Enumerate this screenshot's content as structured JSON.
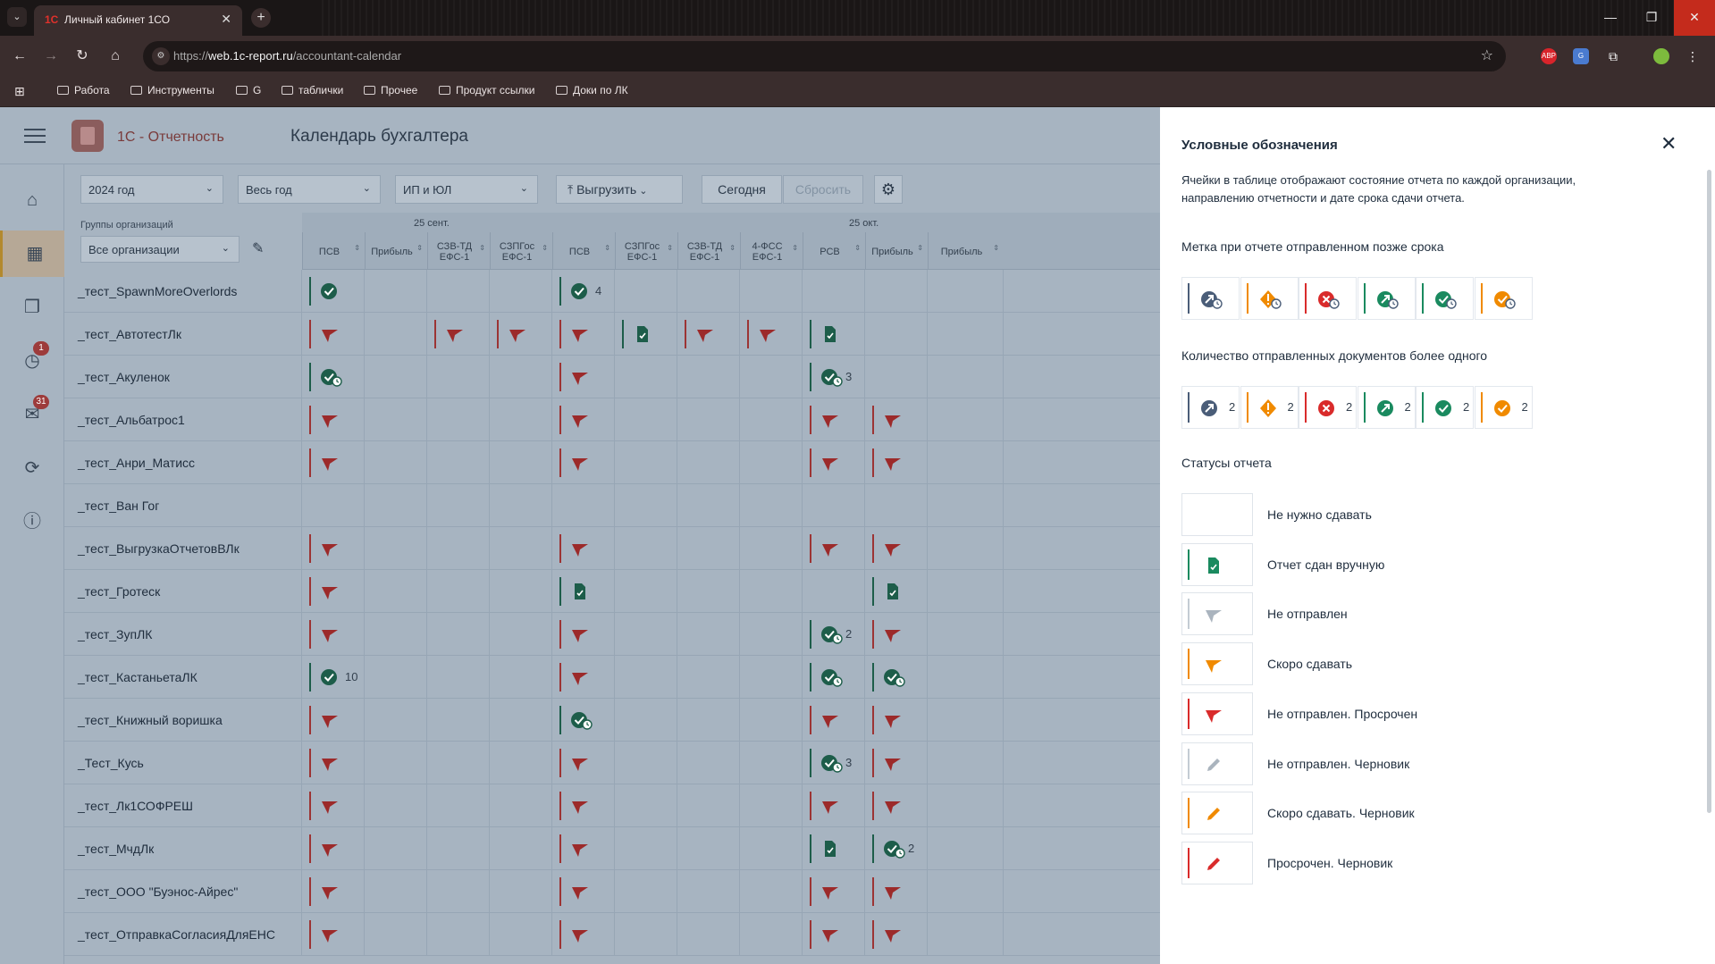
{
  "browser": {
    "tab_title": "Личный кабинет 1СО",
    "url_prefix": "https://",
    "url_host": "web.1c-report.ru",
    "url_path": "/accountant-calendar",
    "bookmarks": [
      "Работа",
      "Инструменты",
      "G",
      "таблички",
      "Прочее",
      "Продукт ссылки",
      "Доки по ЛК"
    ],
    "extensions": [
      "ABP",
      "translate-icon",
      "extensions-icon"
    ]
  },
  "app": {
    "brand": "1С - Отчетность",
    "title": "Календарь бухгалтера",
    "sidebar_badges": {
      "history": "1",
      "mail": "31"
    },
    "filters": {
      "year": "2024 год",
      "period": "Весь год",
      "type": "ИП и ЮЛ",
      "export": "Выгрузить",
      "today": "Сегодня",
      "reset": "Сбросить"
    },
    "group_label": "Группы организаций",
    "group_value": "Все организации",
    "months": [
      "25 сент.",
      "25 окт."
    ],
    "columns": [
      {
        "line1": "ПСВ",
        "line2": ""
      },
      {
        "line1": "Прибыль",
        "line2": ""
      },
      {
        "line1": "СЗВ-ТД",
        "line2": "ЕФС-1"
      },
      {
        "line1": "СЗПГос",
        "line2": "ЕФС-1"
      },
      {
        "line1": "ПСВ",
        "line2": ""
      },
      {
        "line1": "СЗПГос",
        "line2": "ЕФС-1"
      },
      {
        "line1": "СЗВ-ТД",
        "line2": "ЕФС-1"
      },
      {
        "line1": "4-ФСС",
        "line2": "ЕФС-1"
      },
      {
        "line1": "РСВ",
        "line2": ""
      },
      {
        "line1": "Прибыль",
        "line2": ""
      },
      {
        "line1": "Прибыль",
        "line2": ""
      }
    ],
    "rows": [
      {
        "org": "_тест_SpawnMoreOverlords",
        "cells": [
          {
            "c": 0,
            "s": "ok",
            "bar": "green"
          },
          {
            "c": 4,
            "s": "ok",
            "bar": "green",
            "n": "4"
          }
        ]
      },
      {
        "org": "_тест_АвтотестЛк",
        "cells": [
          {
            "c": 0,
            "s": "flag",
            "bar": "red"
          },
          {
            "c": 2,
            "s": "flag",
            "bar": "red"
          },
          {
            "c": 3,
            "s": "flag",
            "bar": "red"
          },
          {
            "c": 4,
            "s": "flag",
            "bar": "red"
          },
          {
            "c": 5,
            "s": "doc",
            "bar": "green"
          },
          {
            "c": 6,
            "s": "flag",
            "bar": "red"
          },
          {
            "c": 7,
            "s": "flag",
            "bar": "red"
          },
          {
            "c": 8,
            "s": "doc",
            "bar": "green"
          }
        ]
      },
      {
        "org": "_тест_Акуленок",
        "cells": [
          {
            "c": 0,
            "s": "okclock",
            "bar": "green"
          },
          {
            "c": 4,
            "s": "flag",
            "bar": "red"
          },
          {
            "c": 8,
            "s": "okclock",
            "bar": "green",
            "n": "3"
          }
        ]
      },
      {
        "org": "_тест_Альбатрос1",
        "cells": [
          {
            "c": 0,
            "s": "flag",
            "bar": "red"
          },
          {
            "c": 4,
            "s": "flag",
            "bar": "red"
          },
          {
            "c": 8,
            "s": "flag",
            "bar": "red"
          },
          {
            "c": 9,
            "s": "flag",
            "bar": "red"
          }
        ]
      },
      {
        "org": "_тест_Анри_Матисс",
        "cells": [
          {
            "c": 0,
            "s": "flag",
            "bar": "red"
          },
          {
            "c": 4,
            "s": "flag",
            "bar": "red"
          },
          {
            "c": 8,
            "s": "flag",
            "bar": "red"
          },
          {
            "c": 9,
            "s": "flag",
            "bar": "red"
          }
        ]
      },
      {
        "org": "_тест_Ван Гог",
        "cells": []
      },
      {
        "org": "_тест_ВыгрузкаОтчетовВЛк",
        "cells": [
          {
            "c": 0,
            "s": "flag",
            "bar": "red"
          },
          {
            "c": 4,
            "s": "flag",
            "bar": "red"
          },
          {
            "c": 8,
            "s": "flag",
            "bar": "red"
          },
          {
            "c": 9,
            "s": "flag",
            "bar": "red"
          }
        ]
      },
      {
        "org": "_тест_Гротеск",
        "cells": [
          {
            "c": 0,
            "s": "flag",
            "bar": "red"
          },
          {
            "c": 4,
            "s": "doc",
            "bar": "green"
          },
          {
            "c": 9,
            "s": "doc",
            "bar": "green"
          }
        ]
      },
      {
        "org": "_тест_ЗупЛК",
        "cells": [
          {
            "c": 0,
            "s": "flag",
            "bar": "red"
          },
          {
            "c": 4,
            "s": "flag",
            "bar": "red"
          },
          {
            "c": 8,
            "s": "okclock",
            "bar": "green",
            "n": "2"
          },
          {
            "c": 9,
            "s": "flag",
            "bar": "red"
          }
        ]
      },
      {
        "org": "_тест_КастаньетаЛК",
        "cells": [
          {
            "c": 0,
            "s": "ok",
            "bar": "green",
            "n": "10"
          },
          {
            "c": 4,
            "s": "flag",
            "bar": "red"
          },
          {
            "c": 8,
            "s": "okclock",
            "bar": "green"
          },
          {
            "c": 9,
            "s": "okclock",
            "bar": "green"
          }
        ]
      },
      {
        "org": "_тест_Книжный воришка",
        "cells": [
          {
            "c": 0,
            "s": "flag",
            "bar": "red"
          },
          {
            "c": 4,
            "s": "okclock",
            "bar": "green"
          },
          {
            "c": 8,
            "s": "flag",
            "bar": "red"
          },
          {
            "c": 9,
            "s": "flag",
            "bar": "red"
          }
        ]
      },
      {
        "org": "_Тест_Кусь",
        "cells": [
          {
            "c": 0,
            "s": "flag",
            "bar": "red"
          },
          {
            "c": 4,
            "s": "flag",
            "bar": "red"
          },
          {
            "c": 8,
            "s": "okclock",
            "bar": "green",
            "n": "3"
          },
          {
            "c": 9,
            "s": "flag",
            "bar": "red"
          }
        ]
      },
      {
        "org": "_тест_Лк1СОФРЕШ",
        "cells": [
          {
            "c": 0,
            "s": "flag",
            "bar": "red"
          },
          {
            "c": 4,
            "s": "flag",
            "bar": "red"
          },
          {
            "c": 8,
            "s": "flag",
            "bar": "red"
          },
          {
            "c": 9,
            "s": "flag",
            "bar": "red"
          }
        ]
      },
      {
        "org": "_тест_МчдЛк",
        "cells": [
          {
            "c": 0,
            "s": "flag",
            "bar": "red"
          },
          {
            "c": 4,
            "s": "flag",
            "bar": "red"
          },
          {
            "c": 8,
            "s": "doc",
            "bar": "green"
          },
          {
            "c": 9,
            "s": "okclock",
            "bar": "green",
            "n": "2"
          }
        ]
      },
      {
        "org": "_тест_ООО \"Буэнос-Айрес\"",
        "cells": [
          {
            "c": 0,
            "s": "flag",
            "bar": "red"
          },
          {
            "c": 4,
            "s": "flag",
            "bar": "red"
          },
          {
            "c": 8,
            "s": "flag",
            "bar": "red"
          },
          {
            "c": 9,
            "s": "flag",
            "bar": "red"
          }
        ]
      },
      {
        "org": "_тест_ОтправкаСогласияДляЕНС",
        "cells": [
          {
            "c": 0,
            "s": "flag",
            "bar": "red"
          },
          {
            "c": 4,
            "s": "flag",
            "bar": "red"
          },
          {
            "c": 8,
            "s": "flag",
            "bar": "red"
          },
          {
            "c": 9,
            "s": "flag",
            "bar": "red"
          }
        ]
      }
    ]
  },
  "legend": {
    "title": "Условные обозначения",
    "description": "Ячейки в таблице отображают состояние отчета по каждой организации, направлению отчетности и дате срока сдачи отчета.",
    "late_title": "Метка при отчете отправленном позже срока",
    "count_title": "Количество отправленных документов более одного",
    "count_value": "2",
    "statuses_title": "Статусы отчета",
    "statuses": [
      {
        "label": "Не нужно сдавать",
        "icon": "none",
        "bar": ""
      },
      {
        "label": "Отчет сдан вручную",
        "icon": "doc-icon",
        "bar": "#1a8a5f"
      },
      {
        "label": "Не отправлен",
        "icon": "flag-icon",
        "bar": "#c3cbd3"
      },
      {
        "label": "Скоро сдавать",
        "icon": "flag-icon",
        "bar": "#f08a00"
      },
      {
        "label": "Не отправлен. Просрочен",
        "icon": "flag-icon",
        "bar": "#d92b2b"
      },
      {
        "label": "Не отправлен. Черновик",
        "icon": "pencil-icon",
        "bar": "#c3cbd3"
      },
      {
        "label": "Скоро сдавать. Черновик",
        "icon": "pencil-icon",
        "bar": "#f08a00"
      },
      {
        "label": "Просрочен. Черновик",
        "icon": "pencil-icon",
        "bar": "#d92b2b"
      }
    ],
    "marker_colors": [
      "#4a5d78",
      "#f08a00",
      "#d92b2b",
      "#1a8a5f",
      "#1a8a5f",
      "#f08a00"
    ]
  },
  "colors": {
    "red": "#9c2a2a",
    "green": "#1d5d4a",
    "orange": "#f08a00",
    "blue_grey": "#4a5d78"
  }
}
